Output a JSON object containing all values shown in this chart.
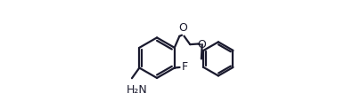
{
  "line_color": "#1a1a2e",
  "bg_color": "#ffffff",
  "figsize": [
    4.05,
    1.23
  ],
  "dpi": 100,
  "lw": 1.6,
  "font_size": 9.0,
  "c1x": 0.285,
  "c1y": 0.47,
  "r1": 0.185,
  "c2x": 0.845,
  "c2y": 0.46,
  "r2": 0.155,
  "xlim": [
    0.0,
    1.0
  ],
  "ylim": [
    0.0,
    1.0
  ]
}
